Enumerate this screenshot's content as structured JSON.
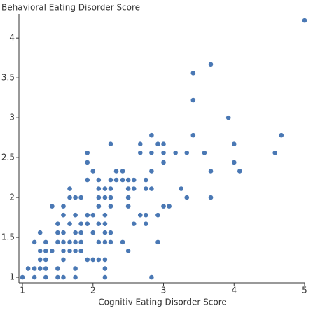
{
  "chart_data": {
    "type": "scatter",
    "title": "Behavioral Eating Disorder Score",
    "xlabel": "Cognitiv Eating Disorder Score",
    "color": "#4a78b4",
    "xlim": [
      0.95,
      5.0
    ],
    "ylim": [
      0.93,
      4.3
    ],
    "xticks": [
      1,
      2,
      3,
      4,
      5
    ],
    "yticks": [
      1,
      1.5,
      2,
      2.5,
      3,
      3.5,
      4
    ],
    "x": [
      5.0,
      3.67,
      3.42,
      3.42,
      3.92,
      2.83,
      3.42,
      4.67,
      2.25,
      2.67,
      2.92,
      3.0,
      4.0,
      1.92,
      2.67,
      2.83,
      3.0,
      3.17,
      3.33,
      3.58,
      4.58,
      1.92,
      3.0,
      4.0,
      2.0,
      2.33,
      2.42,
      2.83,
      3.67,
      4.08,
      1.92,
      2.08,
      2.25,
      2.33,
      2.42,
      2.5,
      2.58,
      2.75,
      1.67,
      2.08,
      2.17,
      2.25,
      2.5,
      2.58,
      2.75,
      2.83,
      3.25,
      1.67,
      1.75,
      1.83,
      2.08,
      2.17,
      2.25,
      2.5,
      3.33,
      3.67,
      1.42,
      1.58,
      2.08,
      2.25,
      2.5,
      3.0,
      3.08,
      1.58,
      1.75,
      1.92,
      2.0,
      2.17,
      2.67,
      2.75,
      2.92,
      1.5,
      1.67,
      1.83,
      1.92,
      2.08,
      2.17,
      2.58,
      2.75,
      1.25,
      1.5,
      1.58,
      1.75,
      1.83,
      2.0,
      2.17,
      2.25,
      1.17,
      1.33,
      1.5,
      1.58,
      1.67,
      1.75,
      1.83,
      2.08,
      2.17,
      2.25,
      2.42,
      2.92,
      1.25,
      1.33,
      1.42,
      1.58,
      1.67,
      1.75,
      1.83,
      2.5,
      1.25,
      1.33,
      1.58,
      1.92,
      2.0,
      2.08,
      2.17,
      1.08,
      1.17,
      1.25,
      1.33,
      1.5,
      1.75,
      2.17,
      1.0,
      1.17,
      1.33,
      1.5,
      1.58,
      1.75,
      2.17,
      2.83
    ],
    "y": [
      4.22,
      3.67,
      3.56,
      3.22,
      3.0,
      2.78,
      2.78,
      2.78,
      2.67,
      2.67,
      2.67,
      2.67,
      2.67,
      2.56,
      2.56,
      2.56,
      2.56,
      2.56,
      2.56,
      2.56,
      2.56,
      2.44,
      2.44,
      2.44,
      2.33,
      2.33,
      2.33,
      2.33,
      2.33,
      2.33,
      2.22,
      2.22,
      2.22,
      2.22,
      2.22,
      2.22,
      2.22,
      2.22,
      2.11,
      2.11,
      2.11,
      2.11,
      2.11,
      2.11,
      2.11,
      2.11,
      2.11,
      2.0,
      2.0,
      2.0,
      2.0,
      2.0,
      2.0,
      2.0,
      2.0,
      2.0,
      1.89,
      1.89,
      1.89,
      1.89,
      1.89,
      1.89,
      1.89,
      1.78,
      1.78,
      1.78,
      1.78,
      1.78,
      1.78,
      1.78,
      1.78,
      1.67,
      1.67,
      1.67,
      1.67,
      1.67,
      1.67,
      1.67,
      1.67,
      1.56,
      1.56,
      1.56,
      1.56,
      1.56,
      1.56,
      1.56,
      1.56,
      1.44,
      1.44,
      1.44,
      1.44,
      1.44,
      1.44,
      1.44,
      1.44,
      1.44,
      1.44,
      1.44,
      1.44,
      1.33,
      1.33,
      1.33,
      1.33,
      1.33,
      1.33,
      1.33,
      1.33,
      1.22,
      1.22,
      1.22,
      1.22,
      1.22,
      1.22,
      1.22,
      1.11,
      1.11,
      1.11,
      1.11,
      1.11,
      1.11,
      1.11,
      1.0,
      1.0,
      1.0,
      1.0,
      1.0,
      1.0,
      1.0,
      1.0
    ]
  }
}
